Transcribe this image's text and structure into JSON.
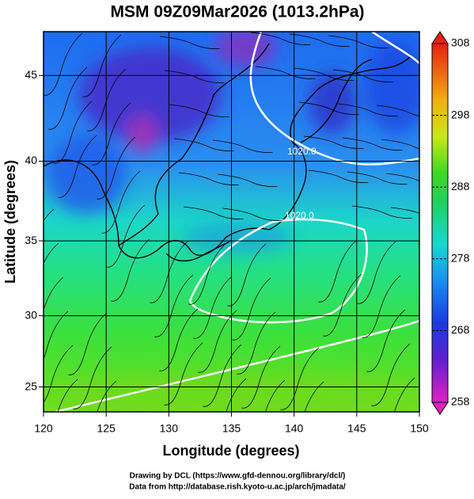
{
  "chart_data": {
    "type": "map",
    "title": "MSM 09Z09Mar2026 (1013.2hPa)",
    "xlabel": "Longitude (degrees)",
    "ylabel": "Latitude  (degrees)",
    "xlim": [
      120,
      150
    ],
    "xticks": [
      120,
      125,
      130,
      135,
      140,
      145,
      150
    ],
    "ylim": [
      23.2,
      47.4
    ],
    "yticks": [
      25,
      30,
      35,
      40,
      45
    ],
    "y_scale": "mercator",
    "grid": true,
    "colorbar": {
      "lim": [
        258,
        308
      ],
      "ticks": [
        258,
        268,
        278,
        288,
        298,
        308
      ]
    },
    "contour_labels": [
      "1020.0",
      "1020.0"
    ],
    "credits": [
      "Drawing by DCL (https://www.gfd-dennou.org/library/dcl/)",
      "Data from http://database.rish.kyoto-u.ac.jp/arch/jmadata/"
    ]
  }
}
